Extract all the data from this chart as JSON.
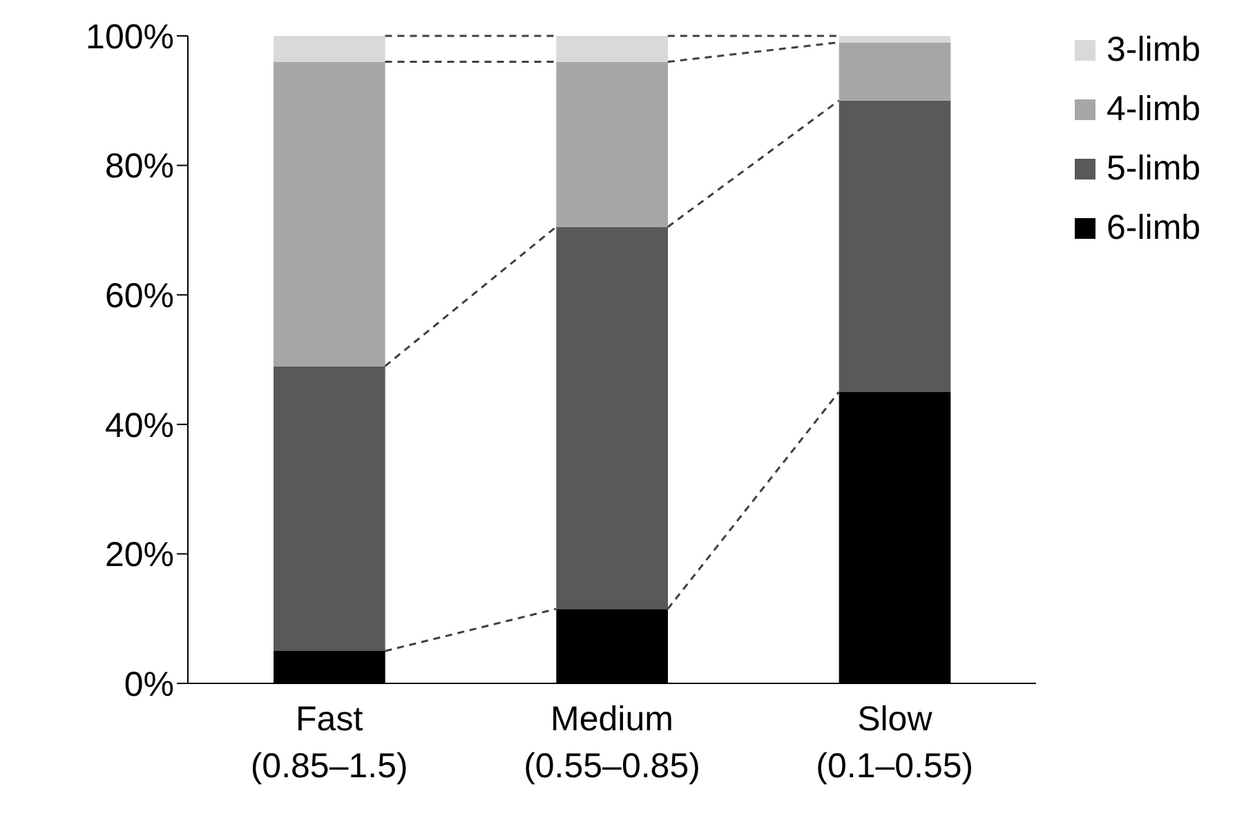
{
  "chart_data": {
    "type": "bar",
    "stacked": true,
    "categories": [
      "Fast (0.85–1.5)",
      "Medium (0.55–0.85)",
      "Slow (0.1–0.55)"
    ],
    "series": [
      {
        "name": "6-limb",
        "color": "#000000",
        "values": [
          5,
          11.5,
          45
        ]
      },
      {
        "name": "5-limb",
        "color": "#595959",
        "values": [
          44,
          59,
          45
        ]
      },
      {
        "name": "4-limb",
        "color": "#a6a6a6",
        "values": [
          47,
          25.5,
          9
        ]
      },
      {
        "name": "3-limb",
        "color": "#d9d9d9",
        "values": [
          4,
          4,
          1
        ]
      }
    ],
    "ylim": [
      0,
      100
    ],
    "yticks": [
      {
        "value": 0,
        "label": "0%"
      },
      {
        "value": 20,
        "label": "20%"
      },
      {
        "value": 40,
        "label": "40%"
      },
      {
        "value": 60,
        "label": "60%"
      },
      {
        "value": 80,
        "label": "80%"
      },
      {
        "value": 100,
        "label": "100%"
      }
    ],
    "grid": false,
    "legend": "right"
  }
}
